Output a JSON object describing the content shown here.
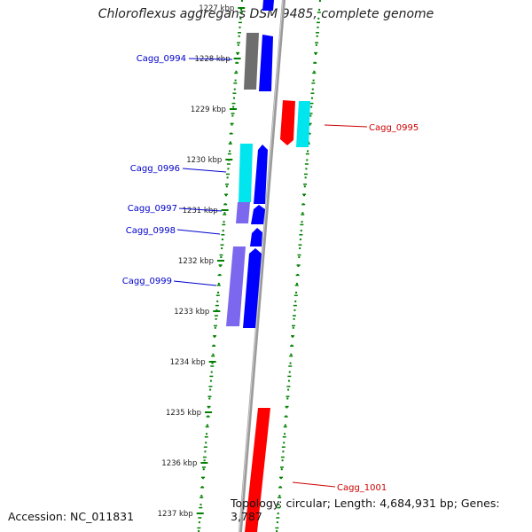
{
  "title": "Chloroflexus aggregans DSM 9485, complete genome",
  "footer": {
    "accession": "Accession: NC_011831",
    "topology": "Topology: circular; Length: 4,684,931 bp; Genes: 3,787"
  },
  "colors": {
    "forward_cds": "#0000ff",
    "forward_light": "#7b68ee",
    "reverse_cds": "#ff0000",
    "feature_cyan": "#00ffff",
    "other_feature": "#777777",
    "backbone": "#9a9a9a",
    "ticks": "#008000",
    "label_forward": "#0000cc",
    "label_reverse": "#cc0000"
  },
  "ruler": [
    {
      "label": "1227 kbp"
    },
    {
      "label": "1228 kbp"
    },
    {
      "label": "1229 kbp"
    },
    {
      "label": "1230 kbp"
    },
    {
      "label": "1231 kbp"
    },
    {
      "label": "1232 kbp"
    },
    {
      "label": "1233 kbp"
    },
    {
      "label": "1234 kbp"
    },
    {
      "label": "1235 kbp"
    },
    {
      "label": "1236 kbp"
    },
    {
      "label": "1237 kbp"
    }
  ],
  "gene_labels": [
    {
      "name": "Cagg_0994",
      "strand": "forward"
    },
    {
      "name": "Cagg_0995",
      "strand": "reverse"
    },
    {
      "name": "Cagg_0996",
      "strand": "forward"
    },
    {
      "name": "Cagg_0997",
      "strand": "forward"
    },
    {
      "name": "Cagg_0998",
      "strand": "forward"
    },
    {
      "name": "Cagg_0999",
      "strand": "forward"
    },
    {
      "name": "Cagg_1001",
      "strand": "reverse"
    }
  ]
}
